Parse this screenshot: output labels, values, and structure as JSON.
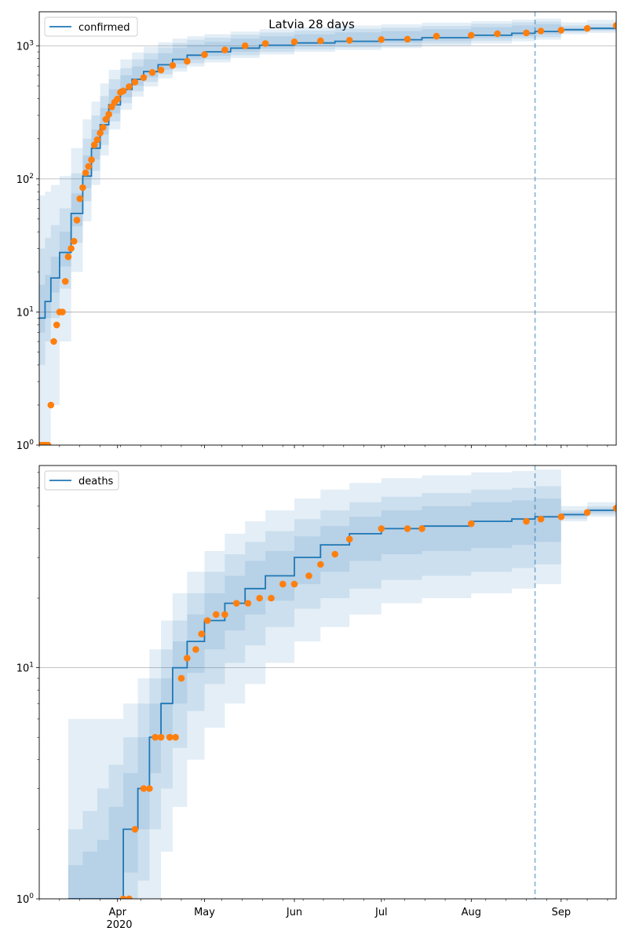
{
  "figure": {
    "title": "Latvia 28 days",
    "x_year_label": "2020"
  },
  "colors": {
    "model": "#1f77b4",
    "observed": "#ff7f0e",
    "band": "#1f77b4",
    "grid": "#b0b0b0"
  },
  "chart_data": [
    {
      "type": "line",
      "panel": "confirmed",
      "title": "Latvia 28 days",
      "legend": [
        "confirmed"
      ],
      "legend_position": "upper-left",
      "yscale": "log",
      "ylim": [
        1,
        1800
      ],
      "y_ticks": [
        {
          "value": 1,
          "base": "10",
          "exp": "0"
        },
        {
          "value": 10,
          "base": "10",
          "exp": "1"
        },
        {
          "value": 100,
          "base": "10",
          "exp": "2"
        },
        {
          "value": 1000,
          "base": "10",
          "exp": "3"
        }
      ],
      "xlim": [
        "2020-03-05",
        "2020-09-20"
      ],
      "x_ticks": [
        {
          "date": "2020-04-01",
          "label": "Apr"
        },
        {
          "date": "2020-05-01",
          "label": "May"
        },
        {
          "date": "2020-06-01",
          "label": "Jun"
        },
        {
          "date": "2020-07-01",
          "label": "Jul"
        },
        {
          "date": "2020-08-01",
          "label": "Aug"
        },
        {
          "date": "2020-09-01",
          "label": "Sep"
        }
      ],
      "grid": "y-major",
      "forecast_start": "2020-08-23",
      "model": {
        "name": "confirmed",
        "x": [
          "2020-03-05",
          "2020-03-07",
          "2020-03-09",
          "2020-03-12",
          "2020-03-16",
          "2020-03-20",
          "2020-03-23",
          "2020-03-26",
          "2020-03-29",
          "2020-04-02",
          "2020-04-06",
          "2020-04-10",
          "2020-04-15",
          "2020-04-20",
          "2020-04-25",
          "2020-05-01",
          "2020-05-10",
          "2020-05-20",
          "2020-06-01",
          "2020-06-15",
          "2020-07-01",
          "2020-07-15",
          "2020-08-01",
          "2020-08-15",
          "2020-08-23",
          "2020-09-01",
          "2020-09-10",
          "2020-09-20"
        ],
        "median": [
          9,
          12,
          18,
          28,
          55,
          105,
          170,
          255,
          360,
          470,
          560,
          640,
          720,
          790,
          850,
          900,
          960,
          1010,
          1050,
          1080,
          1110,
          1150,
          1200,
          1240,
          1280,
          1320,
          1350,
          1400
        ],
        "band50": [
          [
            7,
            16
          ],
          [
            9,
            19
          ],
          [
            14,
            26
          ],
          [
            22,
            40
          ],
          [
            44,
            78
          ],
          [
            85,
            150
          ],
          [
            140,
            235
          ],
          [
            215,
            340
          ],
          [
            310,
            470
          ],
          [
            410,
            600
          ],
          [
            500,
            700
          ],
          [
            580,
            790
          ],
          [
            660,
            880
          ],
          [
            730,
            960
          ],
          [
            790,
            1020
          ],
          [
            840,
            1070
          ],
          [
            900,
            1130
          ],
          [
            950,
            1180
          ],
          [
            990,
            1220
          ],
          [
            1020,
            1260
          ],
          [
            1050,
            1290
          ],
          [
            1090,
            1330
          ],
          [
            1140,
            1380
          ],
          [
            1180,
            1420
          ],
          [
            1220,
            1450
          ],
          [
            1290,
            1360
          ],
          [
            1320,
            1390
          ],
          [
            1370,
            1450
          ]
        ],
        "band80": [
          [
            4,
            30
          ],
          [
            6,
            36
          ],
          [
            9,
            45
          ],
          [
            15,
            60
          ],
          [
            33,
            110
          ],
          [
            68,
            200
          ],
          [
            115,
            300
          ],
          [
            180,
            420
          ],
          [
            270,
            560
          ],
          [
            370,
            680
          ],
          [
            455,
            790
          ],
          [
            535,
            880
          ],
          [
            610,
            970
          ],
          [
            680,
            1050
          ],
          [
            740,
            1110
          ],
          [
            790,
            1150
          ],
          [
            850,
            1210
          ],
          [
            900,
            1260
          ],
          [
            940,
            1300
          ],
          [
            970,
            1340
          ],
          [
            1000,
            1370
          ],
          [
            1040,
            1410
          ],
          [
            1090,
            1460
          ],
          [
            1130,
            1500
          ],
          [
            1160,
            1520
          ],
          [
            1260,
            1420
          ],
          [
            1290,
            1460
          ],
          [
            1340,
            1560
          ]
        ],
        "band95": [
          [
            1,
            75
          ],
          [
            1,
            80
          ],
          [
            2,
            90
          ],
          [
            6,
            105
          ],
          [
            20,
            170
          ],
          [
            48,
            280
          ],
          [
            90,
            380
          ],
          [
            150,
            520
          ],
          [
            235,
            660
          ],
          [
            330,
            790
          ],
          [
            415,
            890
          ],
          [
            495,
            980
          ],
          [
            570,
            1060
          ],
          [
            640,
            1130
          ],
          [
            700,
            1180
          ],
          [
            750,
            1220
          ],
          [
            810,
            1280
          ],
          [
            860,
            1330
          ],
          [
            900,
            1380
          ],
          [
            930,
            1420
          ],
          [
            960,
            1450
          ],
          [
            1000,
            1490
          ],
          [
            1040,
            1530
          ],
          [
            1080,
            1570
          ],
          [
            1110,
            1600
          ],
          [
            1220,
            1500
          ],
          [
            1250,
            1560
          ],
          [
            1300,
            1750
          ]
        ]
      },
      "observed": {
        "x": [
          "2020-03-05",
          "2020-03-06",
          "2020-03-07",
          "2020-03-08",
          "2020-03-09",
          "2020-03-10",
          "2020-03-11",
          "2020-03-12",
          "2020-03-13",
          "2020-03-14",
          "2020-03-15",
          "2020-03-16",
          "2020-03-17",
          "2020-03-18",
          "2020-03-19",
          "2020-03-20",
          "2020-03-21",
          "2020-03-22",
          "2020-03-23",
          "2020-03-24",
          "2020-03-25",
          "2020-03-26",
          "2020-03-27",
          "2020-03-28",
          "2020-03-29",
          "2020-03-30",
          "2020-03-31",
          "2020-04-01",
          "2020-04-02",
          "2020-04-03",
          "2020-04-05",
          "2020-04-07",
          "2020-04-10",
          "2020-04-13",
          "2020-04-16",
          "2020-04-20",
          "2020-04-25",
          "2020-05-01",
          "2020-05-08",
          "2020-05-15",
          "2020-05-22",
          "2020-06-01",
          "2020-06-10",
          "2020-06-20",
          "2020-07-01",
          "2020-07-10",
          "2020-07-20",
          "2020-08-01",
          "2020-08-10",
          "2020-08-20",
          "2020-08-25",
          "2020-09-01",
          "2020-09-10",
          "2020-09-20"
        ],
        "y": [
          1,
          1,
          1,
          1,
          2,
          6,
          8,
          10,
          10,
          17,
          26,
          30,
          34,
          49,
          71,
          86,
          111,
          124,
          139,
          180,
          197,
          221,
          244,
          280,
          305,
          347,
          376,
          398,
          446,
          458,
          493,
          533,
          577,
          630,
          657,
          712,
          764,
          858,
          930,
          1000,
          1040,
          1070,
          1090,
          1100,
          1115,
          1120,
          1180,
          1200,
          1230,
          1250,
          1290,
          1310,
          1350,
          1420
        ]
      }
    },
    {
      "type": "line",
      "panel": "deaths",
      "legend": [
        "deaths"
      ],
      "legend_position": "upper-left",
      "yscale": "log",
      "ylim": [
        1,
        75
      ],
      "y_ticks": [
        {
          "value": 1,
          "base": "10",
          "exp": "0"
        },
        {
          "value": 10,
          "base": "10",
          "exp": "1"
        }
      ],
      "xlim": [
        "2020-03-05",
        "2020-09-20"
      ],
      "x_ticks": [
        {
          "date": "2020-04-01",
          "label": "Apr"
        },
        {
          "date": "2020-05-01",
          "label": "May"
        },
        {
          "date": "2020-06-01",
          "label": "Jun"
        },
        {
          "date": "2020-07-01",
          "label": "Jul"
        },
        {
          "date": "2020-08-01",
          "label": "Aug"
        },
        {
          "date": "2020-09-01",
          "label": "Sep"
        }
      ],
      "grid": "y-major",
      "forecast_start": "2020-08-23",
      "model": {
        "name": "deaths",
        "x": [
          "2020-03-15",
          "2020-03-20",
          "2020-03-25",
          "2020-03-29",
          "2020-04-03",
          "2020-04-08",
          "2020-04-12",
          "2020-04-16",
          "2020-04-20",
          "2020-04-25",
          "2020-05-01",
          "2020-05-08",
          "2020-05-15",
          "2020-05-22",
          "2020-06-01",
          "2020-06-10",
          "2020-06-20",
          "2020-07-01",
          "2020-07-15",
          "2020-08-01",
          "2020-08-15",
          "2020-08-23",
          "2020-09-01",
          "2020-09-10",
          "2020-09-20"
        ],
        "median": [
          1,
          1,
          1,
          1,
          2,
          3,
          5,
          7,
          10,
          13,
          16,
          19,
          22,
          25,
          30,
          34,
          38,
          40,
          41,
          43,
          44,
          45,
          46,
          48,
          50
        ],
        "band50": [
          [
            1,
            1.4
          ],
          [
            1,
            1.6
          ],
          [
            1,
            1.8
          ],
          [
            1,
            2.5
          ],
          [
            1.3,
            3.5
          ],
          [
            2,
            5
          ],
          [
            3.5,
            7
          ],
          [
            5,
            9
          ],
          [
            7,
            13
          ],
          [
            9.5,
            17
          ],
          [
            12,
            21
          ],
          [
            14.5,
            25
          ],
          [
            17,
            29
          ],
          [
            19.5,
            32
          ],
          [
            23,
            37
          ],
          [
            26,
            41
          ],
          [
            29,
            45
          ],
          [
            31,
            48
          ],
          [
            32,
            50
          ],
          [
            33,
            52
          ],
          [
            34,
            53
          ],
          [
            35,
            54
          ],
          [
            45,
            47
          ],
          [
            47,
            49
          ],
          [
            48,
            52
          ]
        ],
        "band80": [
          [
            1,
            2
          ],
          [
            1,
            2.4
          ],
          [
            1,
            3
          ],
          [
            1,
            3.8
          ],
          [
            1,
            5
          ],
          [
            1.2,
            7
          ],
          [
            2,
            9
          ],
          [
            3,
            12
          ],
          [
            4.5,
            16
          ],
          [
            6.5,
            21
          ],
          [
            8.5,
            26
          ],
          [
            10.5,
            31
          ],
          [
            12.5,
            35
          ],
          [
            15,
            39
          ],
          [
            18,
            44
          ],
          [
            20,
            48
          ],
          [
            22,
            52
          ],
          [
            24,
            55
          ],
          [
            25,
            57
          ],
          [
            26,
            59
          ],
          [
            27,
            60
          ],
          [
            28,
            61
          ],
          [
            44,
            48
          ],
          [
            46,
            50
          ],
          [
            47,
            54
          ]
        ],
        "band95": [
          [
            1,
            6
          ],
          [
            1,
            6
          ],
          [
            1,
            6
          ],
          [
            1,
            6
          ],
          [
            1,
            7
          ],
          [
            1,
            9
          ],
          [
            1,
            12
          ],
          [
            1.6,
            16
          ],
          [
            2.5,
            21
          ],
          [
            4,
            26
          ],
          [
            5.5,
            32
          ],
          [
            7,
            38
          ],
          [
            8.5,
            43
          ],
          [
            10.5,
            48
          ],
          [
            13,
            54
          ],
          [
            15,
            59
          ],
          [
            17,
            63
          ],
          [
            19,
            66
          ],
          [
            20,
            68
          ],
          [
            21,
            70
          ],
          [
            22,
            71
          ],
          [
            23,
            72
          ],
          [
            43,
            50
          ],
          [
            45,
            52
          ],
          [
            46,
            57
          ]
        ]
      },
      "observed": {
        "x": [
          "2020-04-03",
          "2020-04-05",
          "2020-04-07",
          "2020-04-10",
          "2020-04-12",
          "2020-04-14",
          "2020-04-16",
          "2020-04-19",
          "2020-04-21",
          "2020-04-23",
          "2020-04-25",
          "2020-04-28",
          "2020-04-30",
          "2020-05-02",
          "2020-05-05",
          "2020-05-08",
          "2020-05-12",
          "2020-05-16",
          "2020-05-20",
          "2020-05-24",
          "2020-05-28",
          "2020-06-01",
          "2020-06-06",
          "2020-06-10",
          "2020-06-15",
          "2020-06-20",
          "2020-07-01",
          "2020-07-10",
          "2020-07-15",
          "2020-08-01",
          "2020-08-20",
          "2020-08-25",
          "2020-09-01",
          "2020-09-10",
          "2020-09-20"
        ],
        "y": [
          1,
          1,
          2,
          3,
          3,
          5,
          5,
          5,
          5,
          9,
          11,
          12,
          14,
          16,
          17,
          17,
          19,
          19,
          20,
          20,
          23,
          23,
          25,
          28,
          31,
          36,
          40,
          40,
          40,
          42,
          43,
          44,
          45,
          47,
          49
        ]
      }
    }
  ]
}
